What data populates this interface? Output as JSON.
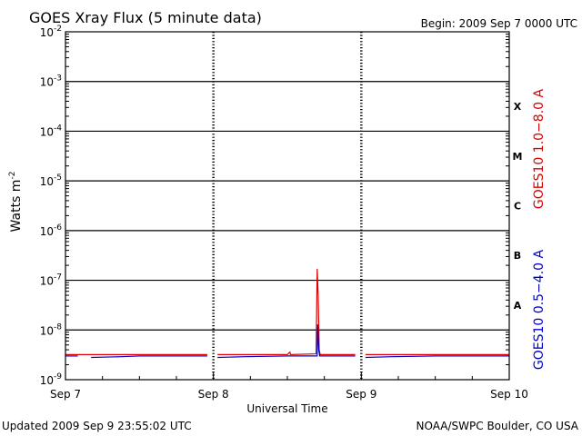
{
  "header": {
    "title": "GOES Xray Flux (5 minute data)",
    "begin": "Begin:  2009 Sep 7 0000 UTC"
  },
  "footer": {
    "updated": "Updated 2009 Sep  9 23:55:02 UTC",
    "credit": "NOAA/SWPC Boulder, CO USA"
  },
  "colors": {
    "long_channel": "#dd0000",
    "short_channel": "#0000cc",
    "grid": "#000000"
  },
  "chart_data": {
    "type": "line",
    "title": "GOES Xray Flux (5 minute data)",
    "xlabel": "Universal Time",
    "ylabel_base": "Watts m",
    "ylabel_exp": "-2",
    "yscale": "log",
    "ylim": [
      1e-09,
      0.01
    ],
    "xlim": [
      "2009-09-07",
      "2009-09-10"
    ],
    "x_ticks": [
      "Sep 7",
      "Sep 8",
      "Sep 9",
      "Sep 10"
    ],
    "y_ticks": [
      {
        "base": "10",
        "exp": "-9",
        "value": 1e-09
      },
      {
        "base": "10",
        "exp": "-8",
        "value": 1e-08
      },
      {
        "base": "10",
        "exp": "-7",
        "value": 1e-07
      },
      {
        "base": "10",
        "exp": "-6",
        "value": 1e-06
      },
      {
        "base": "10",
        "exp": "-5",
        "value": 1e-05
      },
      {
        "base": "10",
        "exp": "-4",
        "value": 0.0001
      },
      {
        "base": "10",
        "exp": "-3",
        "value": 0.001
      },
      {
        "base": "10",
        "exp": "-2",
        "value": 0.01
      }
    ],
    "flare_classes": [
      {
        "label": "A",
        "value": 1e-08
      },
      {
        "label": "B",
        "value": 1e-07
      },
      {
        "label": "C",
        "value": 1e-06
      },
      {
        "label": "M",
        "value": 1e-05
      },
      {
        "label": "X",
        "value": 0.0001
      }
    ],
    "grid": true,
    "series": [
      {
        "name": "GOES10 1.0−8.0 A",
        "color": "#dd0000",
        "segments": [
          [
            [
              "2009-09-07T00:00",
              3.2e-09
            ],
            [
              "2009-09-07T06:00",
              3.2e-09
            ],
            [
              "2009-09-07T12:00",
              3.2e-09
            ],
            [
              "2009-09-07T23:00",
              3.2e-09
            ]
          ],
          [
            [
              "2009-09-08T00:40",
              3.2e-09
            ],
            [
              "2009-09-08T12:00",
              3.2e-09
            ],
            [
              "2009-09-08T12:25",
              3.6e-09
            ],
            [
              "2009-09-08T12:30",
              3.2e-09
            ],
            [
              "2009-09-08T16:40",
              3.3e-09
            ],
            [
              "2009-09-08T16:50",
              1.7e-07
            ],
            [
              "2009-09-08T17:00",
              5e-08
            ],
            [
              "2009-09-08T17:10",
              4e-09
            ],
            [
              "2009-09-08T17:20",
              3.2e-09
            ],
            [
              "2009-09-08T23:00",
              3.2e-09
            ]
          ],
          [
            [
              "2009-09-09T00:40",
              3.2e-09
            ],
            [
              "2009-09-09T12:00",
              3.2e-09
            ],
            [
              "2009-09-09T23:55",
              3.2e-09
            ]
          ]
        ]
      },
      {
        "name": "GOES10 0.5−4.0 A",
        "color": "#0000cc",
        "segments": [
          [
            [
              "2009-09-07T00:00",
              3e-09
            ],
            [
              "2009-09-07T02:00",
              3e-09
            ]
          ],
          [
            [
              "2009-09-07T04:10",
              2.8e-09
            ],
            [
              "2009-09-07T09:00",
              2.9e-09
            ],
            [
              "2009-09-07T12:00",
              3e-09
            ],
            [
              "2009-09-07T23:00",
              3e-09
            ]
          ],
          [
            [
              "2009-09-08T00:40",
              2.8e-09
            ],
            [
              "2009-09-08T05:00",
              2.9e-09
            ],
            [
              "2009-09-08T12:00",
              3e-09
            ],
            [
              "2009-09-08T16:50",
              3e-09
            ],
            [
              "2009-09-08T16:55",
              1.3e-08
            ],
            [
              "2009-09-08T17:05",
              4e-09
            ],
            [
              "2009-09-08T17:15",
              3e-09
            ],
            [
              "2009-09-08T23:00",
              3e-09
            ]
          ],
          [
            [
              "2009-09-09T00:40",
              2.8e-09
            ],
            [
              "2009-09-09T05:00",
              2.9e-09
            ],
            [
              "2009-09-09T12:00",
              3e-09
            ],
            [
              "2009-09-09T23:55",
              3e-09
            ]
          ]
        ]
      }
    ]
  }
}
